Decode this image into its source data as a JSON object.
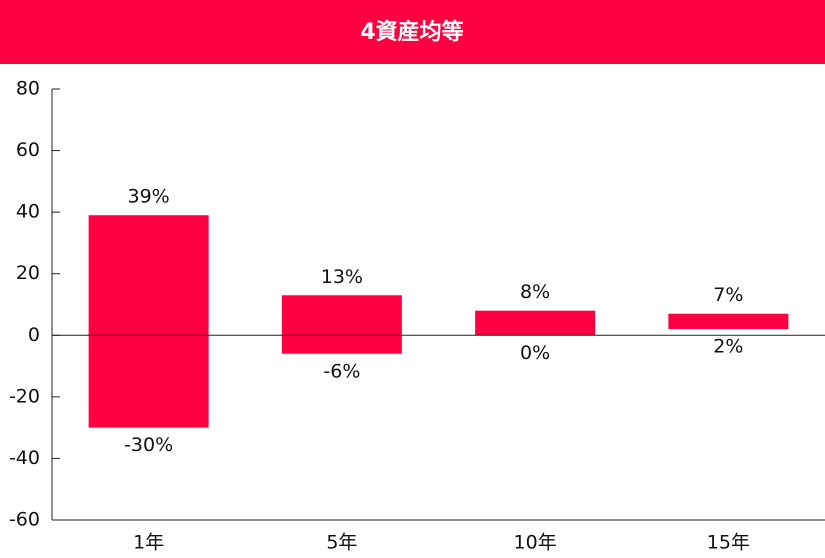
{
  "chart_data": {
    "type": "floating_bar",
    "title": "4資産均等",
    "categories": [
      "1年",
      "5年",
      "10年",
      "15年"
    ],
    "color": "#ff0040",
    "series": [
      {
        "values": [
          39,
          13,
          8,
          7
        ],
        "value_labels": [
          "39%",
          "13%",
          "8%",
          "7%"
        ]
      },
      {
        "values": [
          -30,
          -6,
          0,
          2
        ],
        "value_labels": [
          "-30%",
          "-6%",
          "0%",
          "2%"
        ]
      }
    ],
    "ylim": [
      -60,
      80
    ],
    "yticks": [
      -60,
      -40,
      -20,
      0,
      20,
      40,
      60,
      80
    ]
  }
}
